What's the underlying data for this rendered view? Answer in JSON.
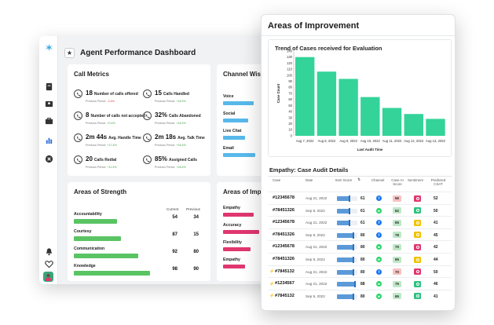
{
  "dashboard": {
    "title": "Agent Performance Dashboard",
    "sidebar_icons": [
      "logo-icon",
      "document-icon",
      "id-card-icon",
      "briefcase-icon",
      "bar-chart-icon",
      "close-circle-icon",
      "bell-icon",
      "heart-icon",
      "avatar"
    ],
    "call_metrics": {
      "title": "Call Metrics",
      "items": [
        {
          "value": "18",
          "label": "Number of calls offered",
          "sub": "Previous Period",
          "delta": "-0.4%",
          "delta_color": "#e53935"
        },
        {
          "value": "15",
          "label": "Calls Handled",
          "sub": "Previous Period",
          "delta": "+18.4%",
          "delta_color": "#43a047"
        },
        {
          "value": "8",
          "label": "Number of calls not accepted",
          "sub": "Previous Period",
          "delta": "+0.4%",
          "delta_color": "#43a047"
        },
        {
          "value": "32%",
          "label": "Calls Abandoned",
          "sub": "Previous Period",
          "delta": "+18.4%",
          "delta_color": "#43a047"
        },
        {
          "value": "2m 44s",
          "label": "Avg. Handle Time",
          "sub": "Previous Period",
          "delta": "+17.4%",
          "delta_color": "#43a047"
        },
        {
          "value": "2m 18s",
          "label": "Avg. Talk Time",
          "sub": "Previous Period",
          "delta": "+18.4%",
          "delta_color": "#43a047"
        },
        {
          "value": "20",
          "label": "Calls Redial",
          "sub": "Previous Period",
          "delta": "+11.4%",
          "delta_color": "#43a047"
        },
        {
          "value": "85%",
          "label": "Assigned Calls",
          "sub": "Previous Period",
          "delta": "+18.4%",
          "delta_color": "#43a047"
        }
      ]
    },
    "channel_wise": {
      "title": "Channel Wise",
      "items": [
        {
          "label": "Voice",
          "fraction": 0.85
        },
        {
          "label": "Social",
          "fraction": 0.7
        },
        {
          "label": "Live Chat",
          "fraction": 0.6
        },
        {
          "label": "Email",
          "fraction": 0.9
        }
      ]
    },
    "areas_of_strength": {
      "title": "Areas of Strength",
      "col_current": "Current",
      "col_previous": "Previous",
      "items": [
        {
          "label": "Accountability",
          "current": "54",
          "previous": "34",
          "fraction": 0.55
        },
        {
          "label": "Courtesy",
          "current": "87",
          "previous": "15",
          "fraction": 0.6
        },
        {
          "label": "Communication",
          "current": "92",
          "previous": "80",
          "fraction": 0.82
        },
        {
          "label": "Knowledge",
          "current": "98",
          "previous": "90",
          "fraction": 0.97
        }
      ]
    },
    "areas_of_improvement_small": {
      "title": "Areas of Improvement",
      "items": [
        {
          "label": "Empathy",
          "fraction": 0.85
        },
        {
          "label": "Accuracy",
          "fraction": 1.0
        },
        {
          "label": "Flexibility",
          "fraction": 0.75
        },
        {
          "label": "Empathy",
          "fraction": 0.6
        }
      ]
    }
  },
  "improvement": {
    "title": "Areas of Improvement",
    "trend_title": "Trend of Cases received for Evaluation",
    "empathy_title": "Empathy: Case Audit Details",
    "columns": [
      "Case",
      "Date",
      "Item Score",
      "Channel",
      "Case AI Score",
      "Sentiment",
      "Predicted CSAT"
    ],
    "rows": [
      {
        "flag": "",
        "case": "#12345678",
        "date": "Aug 21, 2022",
        "score": "61",
        "score_frac": 0.61,
        "channel": "f",
        "channel_color": "#1877f2",
        "ai": "56",
        "ai_color": "#f7c2c2",
        "sentiment_color": "#e0376f",
        "csat": "52"
      },
      {
        "flag": "",
        "case": "#78451326",
        "date": "Sep 9, 2022",
        "score": "61",
        "score_frac": 0.61,
        "channel": "w",
        "channel_color": "#25d366",
        "ai": "62",
        "ai_color": "#bfe8c8",
        "sentiment_color": "#2ec27e",
        "csat": "50"
      },
      {
        "flag": "",
        "case": "#12345678",
        "date": "Aug 21, 2022",
        "score": "61",
        "score_frac": 0.61,
        "channel": "f",
        "channel_color": "#1877f2",
        "ai": "65",
        "ai_color": "#bfe8c8",
        "sentiment_color": "#f2c200",
        "csat": "41"
      },
      {
        "flag": "",
        "case": "#78451326",
        "date": "Sep 9, 2022",
        "score": "80",
        "score_frac": 0.8,
        "channel": "f",
        "channel_color": "#1877f2",
        "ai": "78",
        "ai_color": "#bfe8c8",
        "sentiment_color": "#f2c200",
        "csat": "45"
      },
      {
        "flag": "",
        "case": "#12345678",
        "date": "Aug 21, 2022",
        "score": "80",
        "score_frac": 0.8,
        "channel": "w",
        "channel_color": "#25d366",
        "ai": "70",
        "ai_color": "#bfe8c8",
        "sentiment_color": "#e0376f",
        "csat": "42"
      },
      {
        "flag": "",
        "case": "#78451326",
        "date": "Sep 9, 2022",
        "score": "80",
        "score_frac": 0.8,
        "channel": "w",
        "channel_color": "#25d366",
        "ai": "65",
        "ai_color": "#bfe8c8",
        "sentiment_color": "#f2c200",
        "csat": "44"
      },
      {
        "flag": "⚡",
        "case": "#7845132",
        "date": "Aug 21, 2022",
        "score": "80",
        "score_frac": 0.8,
        "channel": "f",
        "channel_color": "#1877f2",
        "ai": "70",
        "ai_color": "#f7c2c2",
        "sentiment_color": "#e0376f",
        "csat": "50"
      },
      {
        "flag": "⚡",
        "case": "#1234567",
        "date": "Aug 21, 2022",
        "score": "88",
        "score_frac": 0.88,
        "channel": "w",
        "channel_color": "#25d366",
        "ai": "76",
        "ai_color": "#bfe8c8",
        "sentiment_color": "#2ec27e",
        "csat": "46"
      },
      {
        "flag": "⚡",
        "case": "#7845132",
        "date": "Sep 9, 2022",
        "score": "80",
        "score_frac": 0.8,
        "channel": "w",
        "channel_color": "#25d366",
        "ai": "65",
        "ai_color": "#bfe8c8",
        "sentiment_color": "#2ec27e",
        "csat": "41"
      }
    ]
  },
  "chart_data": {
    "type": "bar",
    "title": "Trend of Cases received for Evaluation",
    "xlabel": "Last Audit Time",
    "ylabel": "Case Count",
    "categories": [
      "Aug 7, 2022",
      "Aug 8, 2022",
      "Aug 9, 2022",
      "Aug 10, 2022",
      "Aug 11, 2022",
      "Aug 12, 2022",
      "Aug 13, 2022"
    ],
    "values": [
      130,
      106,
      94,
      64,
      46,
      36,
      28
    ],
    "ylim": [
      0,
      140
    ],
    "yticks": [
      0,
      10,
      20,
      30,
      40,
      50,
      60,
      70,
      80,
      90,
      100,
      110,
      120,
      130,
      140
    ],
    "bar_color": "#34d399",
    "grid": false
  }
}
